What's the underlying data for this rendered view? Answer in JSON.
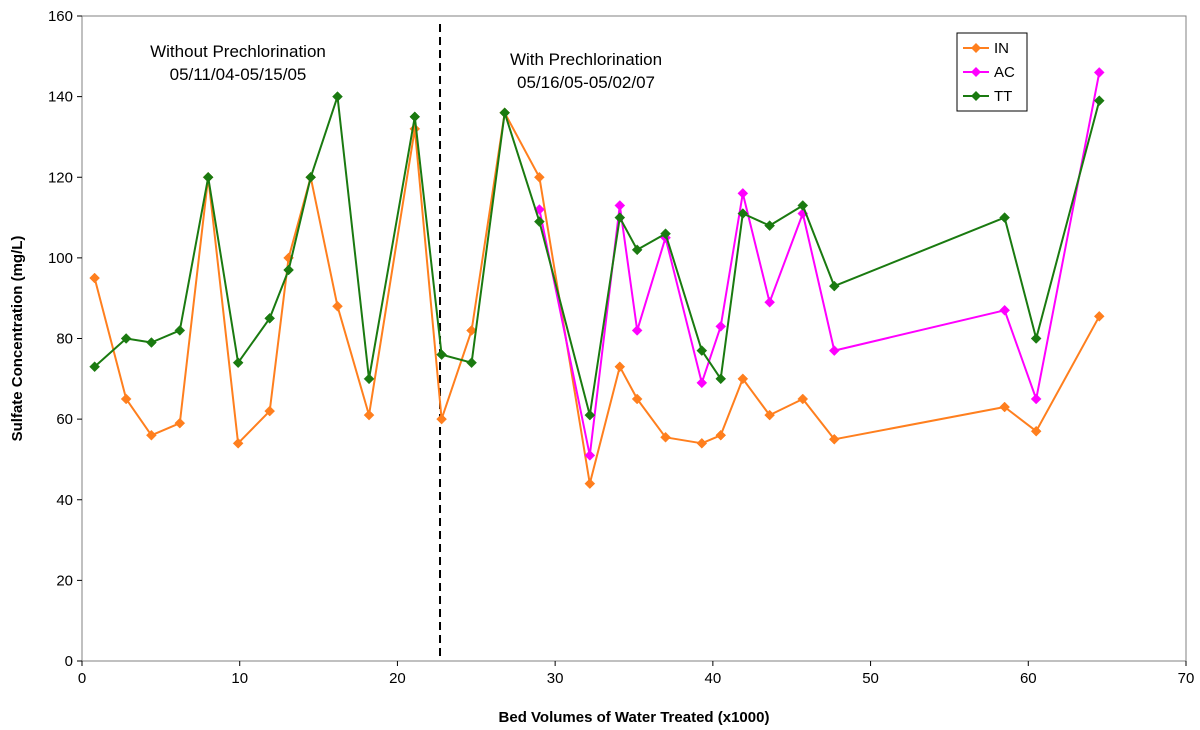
{
  "chart_data": {
    "type": "line",
    "title": "",
    "xlabel": "Bed Volumes of Water Treated (x1000)",
    "ylabel": "Sulfate Concentration (mg/L)",
    "xlim": [
      0,
      70
    ],
    "ylim": [
      0,
      160
    ],
    "xticks": [
      0,
      10,
      20,
      30,
      40,
      50,
      60,
      70
    ],
    "yticks": [
      0,
      20,
      40,
      60,
      80,
      100,
      120,
      140,
      160
    ],
    "grid": false,
    "legend_position": "top-right",
    "divider_x": 22.7,
    "annotations": [
      {
        "line1": "Without Prechlorination",
        "line2": "05/11/04-05/15/05"
      },
      {
        "line1": "With Prechlorination",
        "line2": "05/16/05-05/02/07"
      }
    ],
    "series": [
      {
        "name": "IN",
        "color": "#FF7F1E",
        "points": [
          [
            0.8,
            95
          ],
          [
            2.8,
            65
          ],
          [
            4.4,
            56
          ],
          [
            6.2,
            59
          ],
          [
            8.0,
            120
          ],
          [
            9.9,
            54
          ],
          [
            11.9,
            62
          ],
          [
            13.1,
            100
          ],
          [
            14.5,
            120
          ],
          [
            16.2,
            88
          ],
          [
            18.2,
            61
          ],
          [
            21.1,
            132
          ],
          [
            22.8,
            60
          ],
          [
            24.7,
            82
          ],
          [
            26.8,
            136
          ],
          [
            29.0,
            120
          ],
          [
            32.2,
            44
          ],
          [
            34.1,
            73
          ],
          [
            35.2,
            65
          ],
          [
            37.0,
            55.5
          ],
          [
            39.3,
            54
          ],
          [
            40.5,
            56
          ],
          [
            41.9,
            70
          ],
          [
            43.6,
            61
          ],
          [
            45.7,
            65
          ],
          [
            47.7,
            55
          ],
          [
            58.5,
            63
          ],
          [
            60.5,
            57
          ],
          [
            64.5,
            85.5
          ]
        ]
      },
      {
        "name": "AC",
        "color": "#FF00FF",
        "points": [
          [
            29.0,
            112
          ],
          [
            32.2,
            51
          ],
          [
            34.1,
            113
          ],
          [
            35.2,
            82
          ],
          [
            37.0,
            105
          ],
          [
            39.3,
            69
          ],
          [
            40.5,
            83
          ],
          [
            41.9,
            116
          ],
          [
            43.6,
            89
          ],
          [
            45.7,
            111
          ],
          [
            47.7,
            77
          ],
          [
            58.5,
            87
          ],
          [
            60.5,
            65
          ],
          [
            64.5,
            146
          ]
        ]
      },
      {
        "name": "TT",
        "color": "#1A7A10",
        "points": [
          [
            0.8,
            73
          ],
          [
            2.8,
            80
          ],
          [
            4.4,
            79
          ],
          [
            6.2,
            82
          ],
          [
            8.0,
            120
          ],
          [
            9.9,
            74
          ],
          [
            11.9,
            85
          ],
          [
            13.1,
            97
          ],
          [
            14.5,
            120
          ],
          [
            16.2,
            140
          ],
          [
            18.2,
            70
          ],
          [
            21.1,
            135
          ],
          [
            22.8,
            76
          ],
          [
            24.7,
            74
          ],
          [
            26.8,
            136
          ],
          [
            29.0,
            109
          ],
          [
            32.2,
            61
          ],
          [
            34.1,
            110
          ],
          [
            35.2,
            102
          ],
          [
            37.0,
            106
          ],
          [
            39.3,
            77
          ],
          [
            40.5,
            70
          ],
          [
            41.9,
            111
          ],
          [
            43.6,
            108
          ],
          [
            45.7,
            113
          ],
          [
            47.7,
            93
          ],
          [
            58.5,
            110
          ],
          [
            60.5,
            80
          ],
          [
            64.5,
            139
          ]
        ]
      }
    ]
  }
}
